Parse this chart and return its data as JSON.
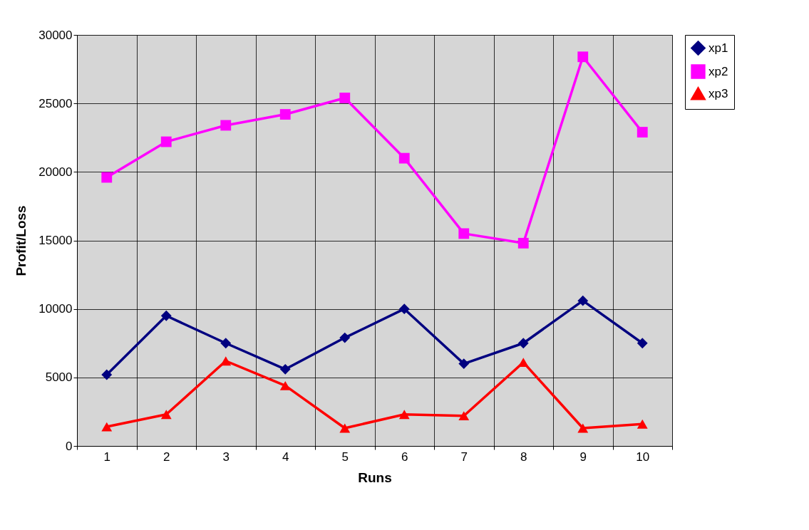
{
  "chart_data": {
    "type": "line",
    "xlabel": "Runs",
    "ylabel": "Profit/Loss",
    "categories": [
      "1",
      "2",
      "3",
      "4",
      "5",
      "6",
      "7",
      "8",
      "9",
      "10"
    ],
    "series": [
      {
        "name": "xp1",
        "color": "#000080",
        "marker": "diamond",
        "values": [
          5200,
          9500,
          7500,
          5600,
          7900,
          10000,
          6000,
          7500,
          10600,
          7500
        ]
      },
      {
        "name": "xp2",
        "color": "#ff00ff",
        "marker": "square",
        "values": [
          19600,
          22200,
          23400,
          24200,
          25400,
          21000,
          15500,
          14800,
          28400,
          22900
        ]
      },
      {
        "name": "xp3",
        "color": "#ff0000",
        "marker": "triangle",
        "values": [
          1400,
          2300,
          6200,
          4400,
          1300,
          2300,
          2200,
          6100,
          1300,
          1600
        ]
      }
    ],
    "ylim": [
      0,
      30000
    ],
    "yticks": [
      0,
      5000,
      10000,
      15000,
      20000,
      25000,
      30000
    ],
    "grid": true,
    "legend": "right",
    "line_style": "solid"
  }
}
